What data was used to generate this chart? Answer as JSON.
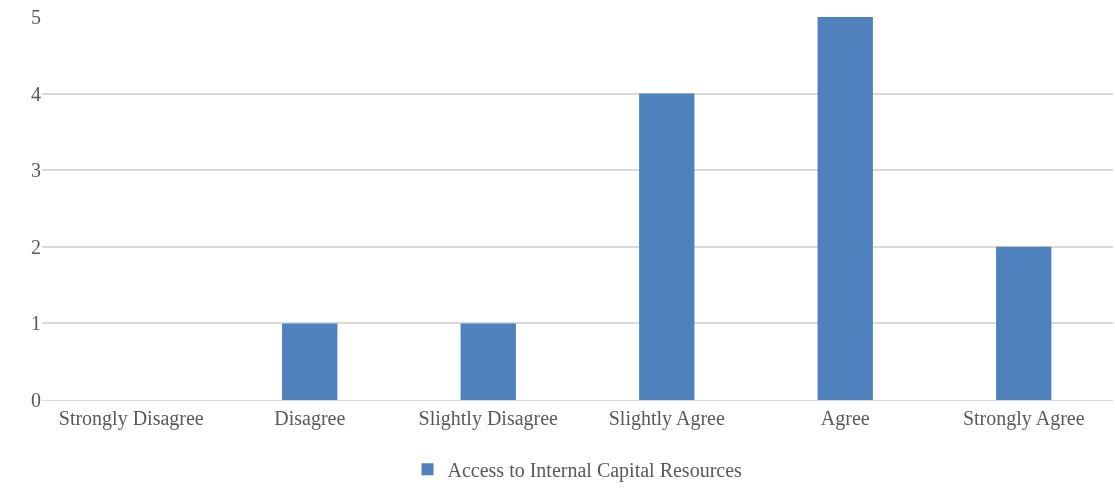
{
  "chart_data": {
    "type": "bar",
    "categories": [
      "Strongly Disagree",
      "Disagree",
      "Slightly Disagree",
      "Slightly Agree",
      "Agree",
      "Strongly Agree"
    ],
    "series": [
      {
        "name": "Access to Internal Capital Resources",
        "color": "#4f81bd",
        "values": [
          0,
          1,
          1,
          4,
          5,
          2
        ]
      }
    ],
    "ylim": [
      0,
      5
    ],
    "yticks": [
      0,
      1,
      2,
      3,
      4,
      5
    ],
    "grid": "y",
    "legend": "bottom"
  }
}
